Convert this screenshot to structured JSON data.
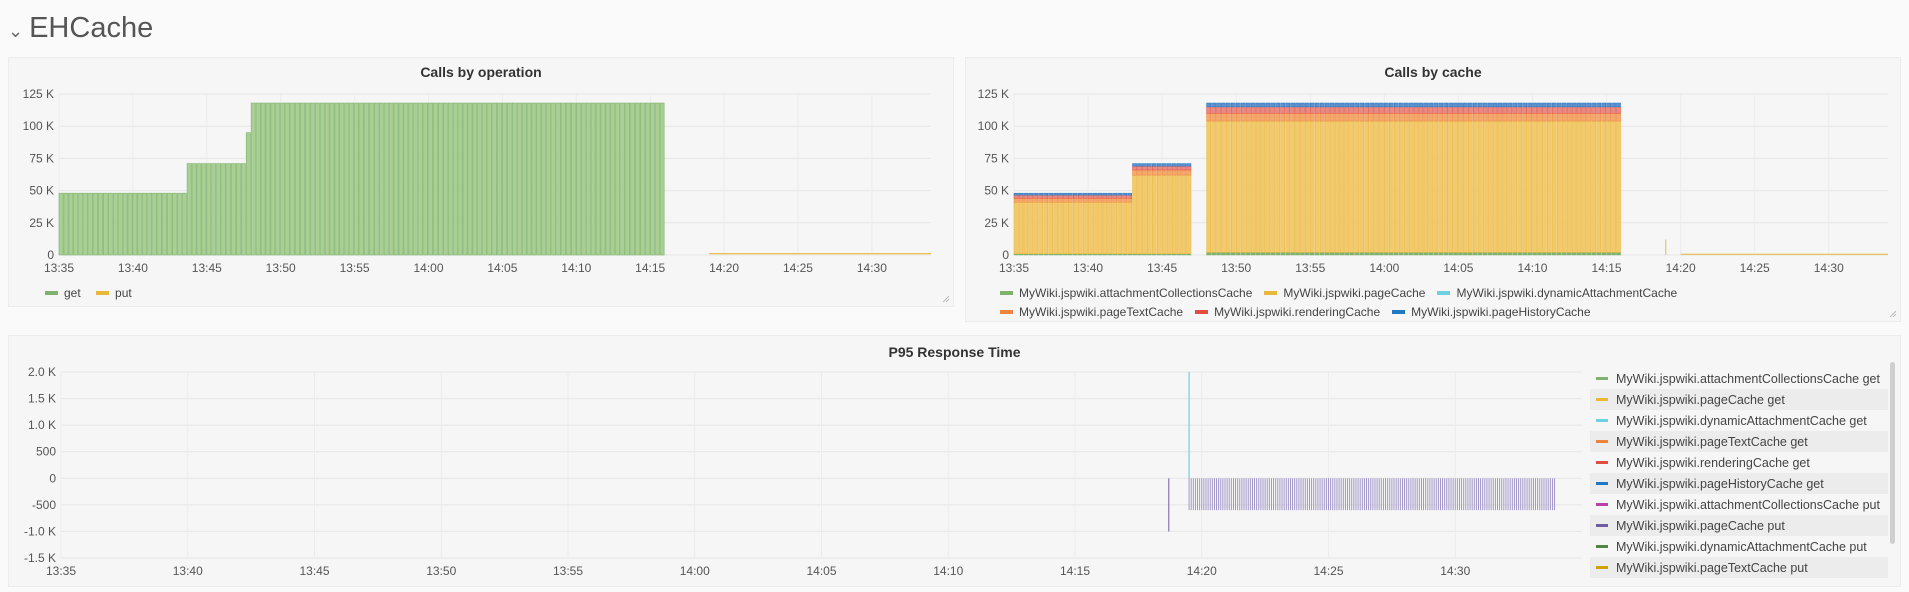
{
  "row": {
    "chevron": "⌄",
    "title": "EHCache"
  },
  "panels": {
    "ops": {
      "title": "Calls by operation",
      "y_ticks": [
        "125 K",
        "100 K",
        "75 K",
        "50 K",
        "25 K",
        "0"
      ],
      "x_ticks": [
        "13:35",
        "13:40",
        "13:45",
        "13:50",
        "13:55",
        "14:00",
        "14:05",
        "14:10",
        "14:15",
        "14:20",
        "14:25",
        "14:30"
      ],
      "legend": [
        {
          "name": "get",
          "color": "#7eb26d"
        },
        {
          "name": "put",
          "color": "#eab839"
        }
      ]
    },
    "cache": {
      "title": "Calls by cache",
      "y_ticks": [
        "125 K",
        "100 K",
        "75 K",
        "50 K",
        "25 K",
        "0"
      ],
      "x_ticks": [
        "13:35",
        "13:40",
        "13:45",
        "13:50",
        "13:55",
        "14:00",
        "14:05",
        "14:10",
        "14:15",
        "14:20",
        "14:25",
        "14:30"
      ],
      "legend_row1": [
        {
          "name": "MyWiki.jspwiki.attachmentCollectionsCache",
          "color": "#7eb26d"
        },
        {
          "name": "MyWiki.jspwiki.pageCache",
          "color": "#eab839"
        },
        {
          "name": "MyWiki.jspwiki.dynamicAttachmentCache",
          "color": "#6ed0e0"
        }
      ],
      "legend_row2": [
        {
          "name": "MyWiki.jspwiki.pageTextCache",
          "color": "#ef843c"
        },
        {
          "name": "MyWiki.jspwiki.renderingCache",
          "color": "#e24d42"
        },
        {
          "name": "MyWiki.jspwiki.pageHistoryCache",
          "color": "#1f78c1"
        }
      ]
    },
    "p95": {
      "title": "P95 Response Time",
      "y_ticks": [
        "2.0 K",
        "1.5 K",
        "1.0 K",
        "500",
        "0",
        "-500",
        "-1.0 K",
        "-1.5 K"
      ],
      "x_ticks": [
        "13:35",
        "13:40",
        "13:45",
        "13:50",
        "13:55",
        "14:00",
        "14:05",
        "14:10",
        "14:15",
        "14:20",
        "14:25",
        "14:30"
      ],
      "legend": [
        {
          "name": "MyWiki.jspwiki.attachmentCollectionsCache get",
          "color": "#7eb26d"
        },
        {
          "name": "MyWiki.jspwiki.pageCache get",
          "color": "#eab839"
        },
        {
          "name": "MyWiki.jspwiki.dynamicAttachmentCache get",
          "color": "#6ed0e0"
        },
        {
          "name": "MyWiki.jspwiki.pageTextCache get",
          "color": "#ef843c"
        },
        {
          "name": "MyWiki.jspwiki.renderingCache get",
          "color": "#e24d42"
        },
        {
          "name": "MyWiki.jspwiki.pageHistoryCache get",
          "color": "#1f78c1"
        },
        {
          "name": "MyWiki.jspwiki.attachmentCollectionsCache put",
          "color": "#ba43a9"
        },
        {
          "name": "MyWiki.jspwiki.pageCache put",
          "color": "#705da0"
        },
        {
          "name": "MyWiki.jspwiki.dynamicAttachmentCache put",
          "color": "#508642"
        },
        {
          "name": "MyWiki.jspwiki.pageTextCache put",
          "color": "#cca300"
        }
      ]
    }
  },
  "chart_data": [
    {
      "type": "bar",
      "title": "Calls by operation",
      "x_range": [
        "13:35",
        "14:34"
      ],
      "ylim": [
        0,
        125000
      ],
      "series": [
        {
          "name": "get",
          "points": [
            [
              "13:35",
              48000
            ],
            [
              "13:43",
              48000
            ],
            [
              "13:43:30",
              71000
            ],
            [
              "13:47",
              71000
            ],
            [
              "13:47:30",
              95000
            ],
            [
              "13:48",
              118000
            ],
            [
              "14:16",
              118000
            ]
          ]
        },
        {
          "name": "put",
          "points": [
            [
              "14:19",
              1000
            ],
            [
              "14:34",
              1000
            ]
          ]
        }
      ],
      "grid": true,
      "legend_position": "bottom"
    },
    {
      "type": "bar",
      "title": "Calls by cache",
      "stacked": true,
      "x_range": [
        "13:35",
        "14:34"
      ],
      "ylim": [
        0,
        125000
      ],
      "categories": [
        "13:35-13:43",
        "13:43-13:47",
        "13:48-14:16"
      ],
      "series": [
        {
          "name": "MyWiki.jspwiki.attachmentCollectionsCache",
          "values": [
            1000,
            1000,
            2000
          ]
        },
        {
          "name": "MyWiki.jspwiki.pageCache",
          "values": [
            40000,
            61000,
            102000
          ]
        },
        {
          "name": "MyWiki.jspwiki.dynamicAttachmentCache",
          "values": [
            0,
            0,
            0
          ]
        },
        {
          "name": "MyWiki.jspwiki.pageTextCache",
          "values": [
            3000,
            4000,
            6000
          ]
        },
        {
          "name": "MyWiki.jspwiki.renderingCache",
          "values": [
            2500,
            3000,
            5000
          ]
        },
        {
          "name": "MyWiki.jspwiki.pageHistoryCache",
          "values": [
            1500,
            2000,
            3000
          ]
        }
      ],
      "grid": true,
      "legend_position": "bottom"
    },
    {
      "type": "line",
      "title": "P95 Response Time",
      "x_range": [
        "13:35",
        "14:35"
      ],
      "ylim": [
        -1500,
        2000
      ],
      "series": [
        {
          "name": "MyWiki.jspwiki.dynamicAttachmentCache get",
          "points": [
            [
              "14:19:30",
              2000
            ],
            [
              "14:19:30",
              0
            ]
          ]
        },
        {
          "name": "MyWiki.jspwiki.pageCache put",
          "points": [
            [
              "14:19",
              -1000
            ],
            [
              "14:34",
              -600
            ]
          ]
        }
      ],
      "grid": true,
      "legend_position": "right"
    }
  ]
}
